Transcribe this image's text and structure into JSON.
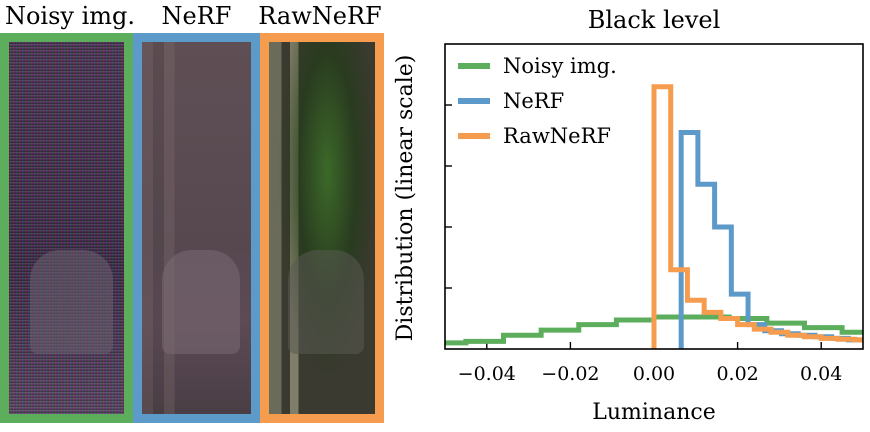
{
  "panels": [
    {
      "title": "Noisy img.",
      "border_color": "#5cad5c"
    },
    {
      "title": "NeRF",
      "border_color": "#5b9ac9"
    },
    {
      "title": "RawNeRF",
      "border_color": "#f59c4e"
    }
  ],
  "chart_data": {
    "type": "line",
    "title": "Black level",
    "xlabel": "Luminance",
    "ylabel": "Distribution (linear scale)",
    "xlim": [
      -0.05,
      0.05
    ],
    "ylim": [
      0,
      1
    ],
    "xticks": [
      -0.04,
      -0.02,
      0.0,
      0.02,
      0.04
    ],
    "xtick_labels": [
      "−0.04",
      "−0.02",
      "0.00",
      "0.02",
      "0.04"
    ],
    "yticks": [
      0.2,
      0.4,
      0.6,
      0.8
    ],
    "grid": false,
    "legend_position": "top-left",
    "series": [
      {
        "name": "Noisy img.",
        "color": "#5cad5c",
        "steps": [
          [
            -0.05,
            0.02
          ],
          [
            -0.045,
            0.025
          ],
          [
            -0.036,
            0.045
          ],
          [
            -0.027,
            0.062
          ],
          [
            -0.018,
            0.08
          ],
          [
            -0.009,
            0.095
          ],
          [
            0.0,
            0.105
          ],
          [
            0.009,
            0.105
          ],
          [
            0.018,
            0.1
          ],
          [
            0.027,
            0.085
          ],
          [
            0.036,
            0.07
          ],
          [
            0.045,
            0.055
          ],
          [
            0.05,
            0.055
          ]
        ]
      },
      {
        "name": "NeRF",
        "color": "#5b9ac9",
        "steps": [
          [
            0.0065,
            0.0
          ],
          [
            0.0065,
            0.71
          ],
          [
            0.0105,
            0.54
          ],
          [
            0.0145,
            0.4
          ],
          [
            0.0185,
            0.18
          ],
          [
            0.0225,
            0.08
          ],
          [
            0.0265,
            0.06
          ],
          [
            0.0305,
            0.05
          ],
          [
            0.0345,
            0.045
          ],
          [
            0.0385,
            0.04
          ],
          [
            0.0425,
            0.035
          ],
          [
            0.0465,
            0.03
          ],
          [
            0.05,
            0.03
          ]
        ]
      },
      {
        "name": "RawNeRF",
        "color": "#f59c4e",
        "steps": [
          [
            0.0,
            0.0
          ],
          [
            0.0,
            0.86
          ],
          [
            0.004,
            0.26
          ],
          [
            0.008,
            0.16
          ],
          [
            0.012,
            0.12
          ],
          [
            0.016,
            0.1
          ],
          [
            0.02,
            0.08
          ],
          [
            0.024,
            0.065
          ],
          [
            0.028,
            0.055
          ],
          [
            0.032,
            0.045
          ],
          [
            0.036,
            0.04
          ],
          [
            0.04,
            0.035
          ],
          [
            0.044,
            0.032
          ],
          [
            0.048,
            0.03
          ],
          [
            0.05,
            0.03
          ]
        ]
      }
    ]
  }
}
